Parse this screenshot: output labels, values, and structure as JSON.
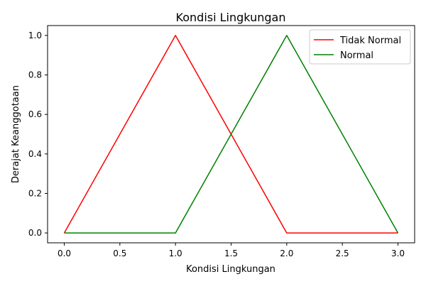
{
  "chart_data": {
    "type": "line",
    "title": "Kondisi Lingkungan",
    "xlabel": "Kondisi Lingkungan",
    "ylabel": "Derajat Keanggotaan",
    "xlim": [
      -0.15,
      3.15
    ],
    "ylim": [
      -0.05,
      1.05
    ],
    "x_ticks": [
      0.0,
      0.5,
      1.0,
      1.5,
      2.0,
      2.5,
      3.0
    ],
    "x_tick_labels": [
      "0.0",
      "0.5",
      "1.0",
      "1.5",
      "2.0",
      "2.5",
      "3.0"
    ],
    "y_ticks": [
      0.0,
      0.2,
      0.4,
      0.6,
      0.8,
      1.0
    ],
    "y_tick_labels": [
      "0.0",
      "0.2",
      "0.4",
      "0.6",
      "0.8",
      "1.0"
    ],
    "grid": false,
    "legend_position": "top-right",
    "series": [
      {
        "name": "Tidak Normal",
        "color": "#ff0000",
        "x": [
          0,
          1,
          2,
          3
        ],
        "y": [
          0,
          1,
          0,
          0
        ]
      },
      {
        "name": "Normal",
        "color": "#008000",
        "x": [
          0,
          1,
          2,
          3
        ],
        "y": [
          0,
          0,
          1,
          0
        ]
      }
    ]
  }
}
